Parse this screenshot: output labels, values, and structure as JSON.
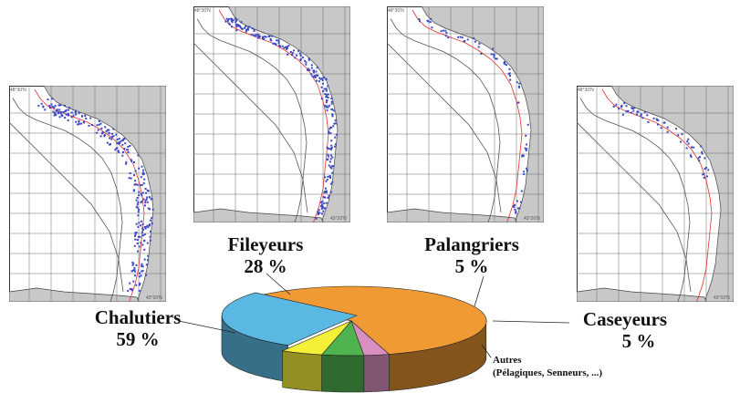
{
  "chart_data": {
    "type": "pie",
    "title": "",
    "slices": [
      {
        "name": "Chalutiers",
        "value": 59,
        "label": "59 %",
        "color": "#ef9a35"
      },
      {
        "name": "Fileyeurs",
        "value": 28,
        "label": "28 %",
        "color": "#5bb8e2"
      },
      {
        "name": "Palangriers",
        "value": 5,
        "label": "5 %",
        "color": "#f4f038"
      },
      {
        "name": "Caseyeurs",
        "value": 5,
        "label": "5 %",
        "color": "#4fb34f"
      },
      {
        "name": "Autres",
        "value": 3,
        "label": "(Pélagiques, Senneurs, ...)",
        "color": "#d98fc0"
      }
    ]
  },
  "maps": [
    {
      "id": "chalutiers",
      "coord_top": "48°30'N",
      "coord_bottom": "43°20'N"
    },
    {
      "id": "fileyeurs",
      "coord_top": "48°30'N",
      "coord_bottom": "43°20'N"
    },
    {
      "id": "palangriers",
      "coord_top": "48°30'N",
      "coord_bottom": "43°20'N"
    },
    {
      "id": "caseyeurs",
      "coord_top": "48°30'N",
      "coord_bottom": "43°20'N"
    }
  ],
  "colors": {
    "land": "#c8c8c8",
    "points": "#3a47c4",
    "isobath": "#e03030",
    "grid": "#6a6a6a"
  }
}
